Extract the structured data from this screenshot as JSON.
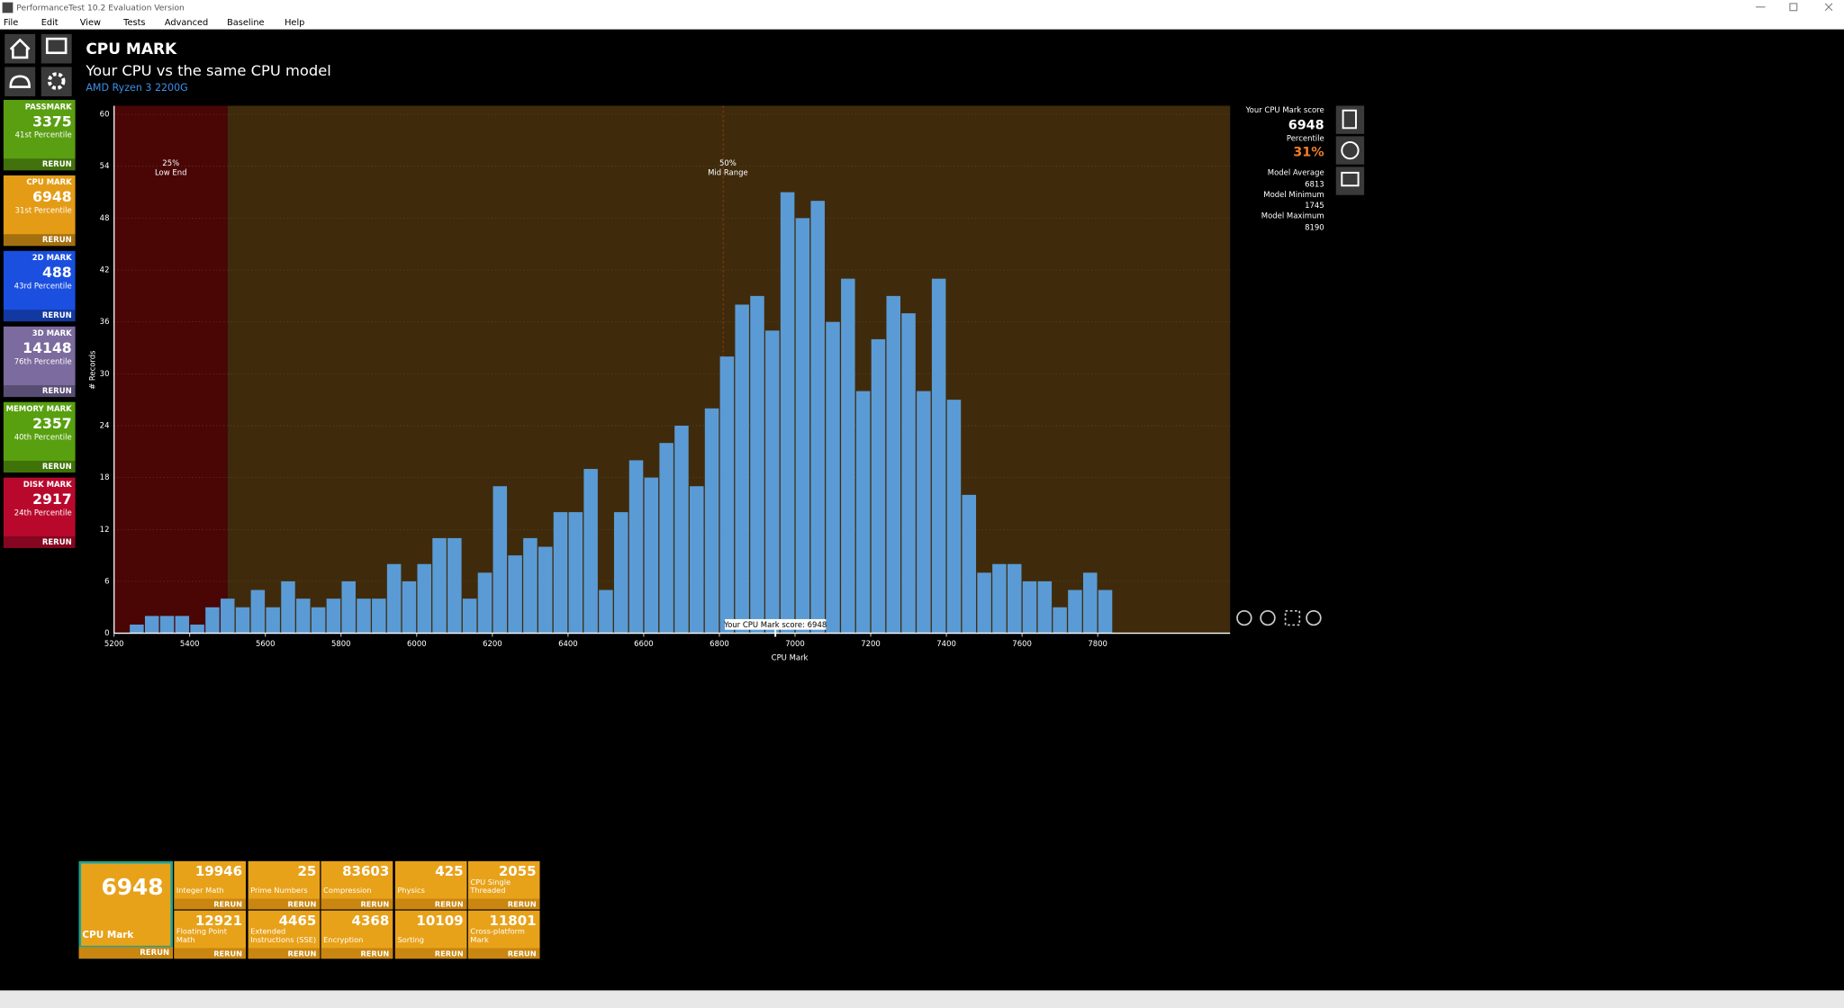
{
  "window": {
    "title": "PerformanceTest 10.2 Evaluation Version"
  },
  "menu": [
    "File",
    "Edit",
    "View",
    "Tests",
    "Advanced",
    "Baseline",
    "Help"
  ],
  "sidebar": [
    {
      "label": "PASSMARK",
      "score": 3375,
      "percentile": "41st Percentile",
      "action": "RERUN",
      "color": "#5a9e12"
    },
    {
      "label": "CPU MARK",
      "score": 6948,
      "percentile": "31st Percentile",
      "action": "RERUN",
      "color": "#e49c16"
    },
    {
      "label": "2D MARK",
      "score": 488,
      "percentile": "43rd Percentile",
      "action": "RERUN",
      "color": "#1a4fe0"
    },
    {
      "label": "3D MARK",
      "score": 14148,
      "percentile": "76th Percentile",
      "action": "RERUN",
      "color": "#7b6b9e"
    },
    {
      "label": "MEMORY MARK",
      "score": 2357,
      "percentile": "40th Percentile",
      "action": "RERUN",
      "color": "#58a00f"
    },
    {
      "label": "DISK MARK",
      "score": 2917,
      "percentile": "24th Percentile",
      "action": "RERUN",
      "color": "#b8092d"
    }
  ],
  "header": {
    "title": "CPU MARK",
    "subtitle": "Your CPU vs the same CPU model",
    "cpu": "AMD Ryzen 3 2200G"
  },
  "chart_data": {
    "type": "histogram",
    "x_label": "CPU Mark",
    "y_label": "# Records",
    "color": "#5b9bd5",
    "bins": [
      5240,
      5280,
      5320,
      5360,
      5400,
      5440,
      5480,
      5520,
      5560,
      5600,
      5640,
      5680,
      5720,
      5760,
      5800,
      5840,
      5880,
      5920,
      5960,
      6000,
      6040,
      6080,
      6120,
      6160,
      6200,
      6240,
      6280,
      6320,
      6360,
      6400,
      6440,
      6480,
      6520,
      6560,
      6600,
      6640,
      6680,
      6720,
      6760,
      6800,
      6840,
      6880,
      6920,
      6960,
      7000,
      7040,
      7080,
      7120,
      7160,
      7200,
      7240,
      7280,
      7320,
      7360,
      7400,
      7440,
      7480,
      7520,
      7560,
      7600,
      7640,
      7680,
      7720,
      7760,
      7800,
      7840
    ],
    "values": [
      1,
      2,
      2,
      2,
      1,
      3,
      4,
      3,
      5,
      3,
      6,
      4,
      3,
      4,
      6,
      4,
      4,
      8,
      6,
      8,
      11,
      11,
      4,
      7,
      17,
      9,
      11,
      10,
      14,
      14,
      19,
      5,
      14,
      20,
      18,
      22,
      24,
      17,
      26,
      32,
      38,
      39,
      35,
      51,
      48,
      50,
      36,
      41,
      28,
      34,
      39,
      37,
      28,
      41,
      27,
      16,
      7,
      8,
      8,
      6,
      6,
      3,
      5,
      7,
      5
    ],
    "xlim": [
      5200,
      8150
    ],
    "ylim": [
      0,
      61
    ],
    "xticks": [
      5200,
      5400,
      5600,
      5800,
      6000,
      6200,
      6400,
      6600,
      6800,
      7000,
      7200,
      7400,
      7600,
      7800
    ],
    "yticks": [
      0,
      6,
      12,
      18,
      24,
      30,
      36,
      42,
      48,
      54,
      60
    ],
    "regions": [
      {
        "from": 5200,
        "to": 5500,
        "color": "#4a0505",
        "percent": "25%",
        "label": "Low End"
      },
      {
        "from": 5500,
        "to": 8150,
        "color": "#3f2b0c",
        "percent": "50%",
        "label": "Mid Range",
        "marker": 6810
      }
    ],
    "annotation": {
      "text": "Your CPU Mark score: 6948",
      "x": 6948
    }
  },
  "scores": [
    {
      "label": "Your CPU Mark score",
      "value": 6948
    },
    {
      "label": "Percentile",
      "value": "31%"
    },
    {
      "label": "Model Average",
      "value": 6813
    },
    {
      "label": "Model Minimum",
      "value": 1745
    },
    {
      "label": "Model Maximum",
      "value": 8190
    }
  ],
  "tests": {
    "main": {
      "score": 6948,
      "label": "CPU Mark",
      "action": "RERUN"
    },
    "subtests": [
      {
        "score": 19946,
        "label": [
          "Integer Math"
        ],
        "action": "RERUN"
      },
      {
        "score": 25,
        "label": [
          "Prime Numbers"
        ],
        "action": "RERUN"
      },
      {
        "score": 83603,
        "label": [
          "Compression"
        ],
        "action": "RERUN"
      },
      {
        "score": 425,
        "label": [
          "Physics"
        ],
        "action": "RERUN"
      },
      {
        "score": 2055,
        "label": [
          "CPU Single",
          "Threaded"
        ],
        "action": "RERUN"
      },
      {
        "score": 12921,
        "label": [
          "Floating Point",
          "Math"
        ],
        "action": "RERUN"
      },
      {
        "score": 4465,
        "label": [
          "Extended",
          "Instructions (SSE)"
        ],
        "action": "RERUN"
      },
      {
        "score": 4368,
        "label": [
          "Encryption"
        ],
        "action": "RERUN"
      },
      {
        "score": 10109,
        "label": [
          "Sorting"
        ],
        "action": "RERUN"
      },
      {
        "score": 11801,
        "label": [
          "Cross-platform",
          "Mark"
        ],
        "action": "RERUN"
      }
    ]
  }
}
